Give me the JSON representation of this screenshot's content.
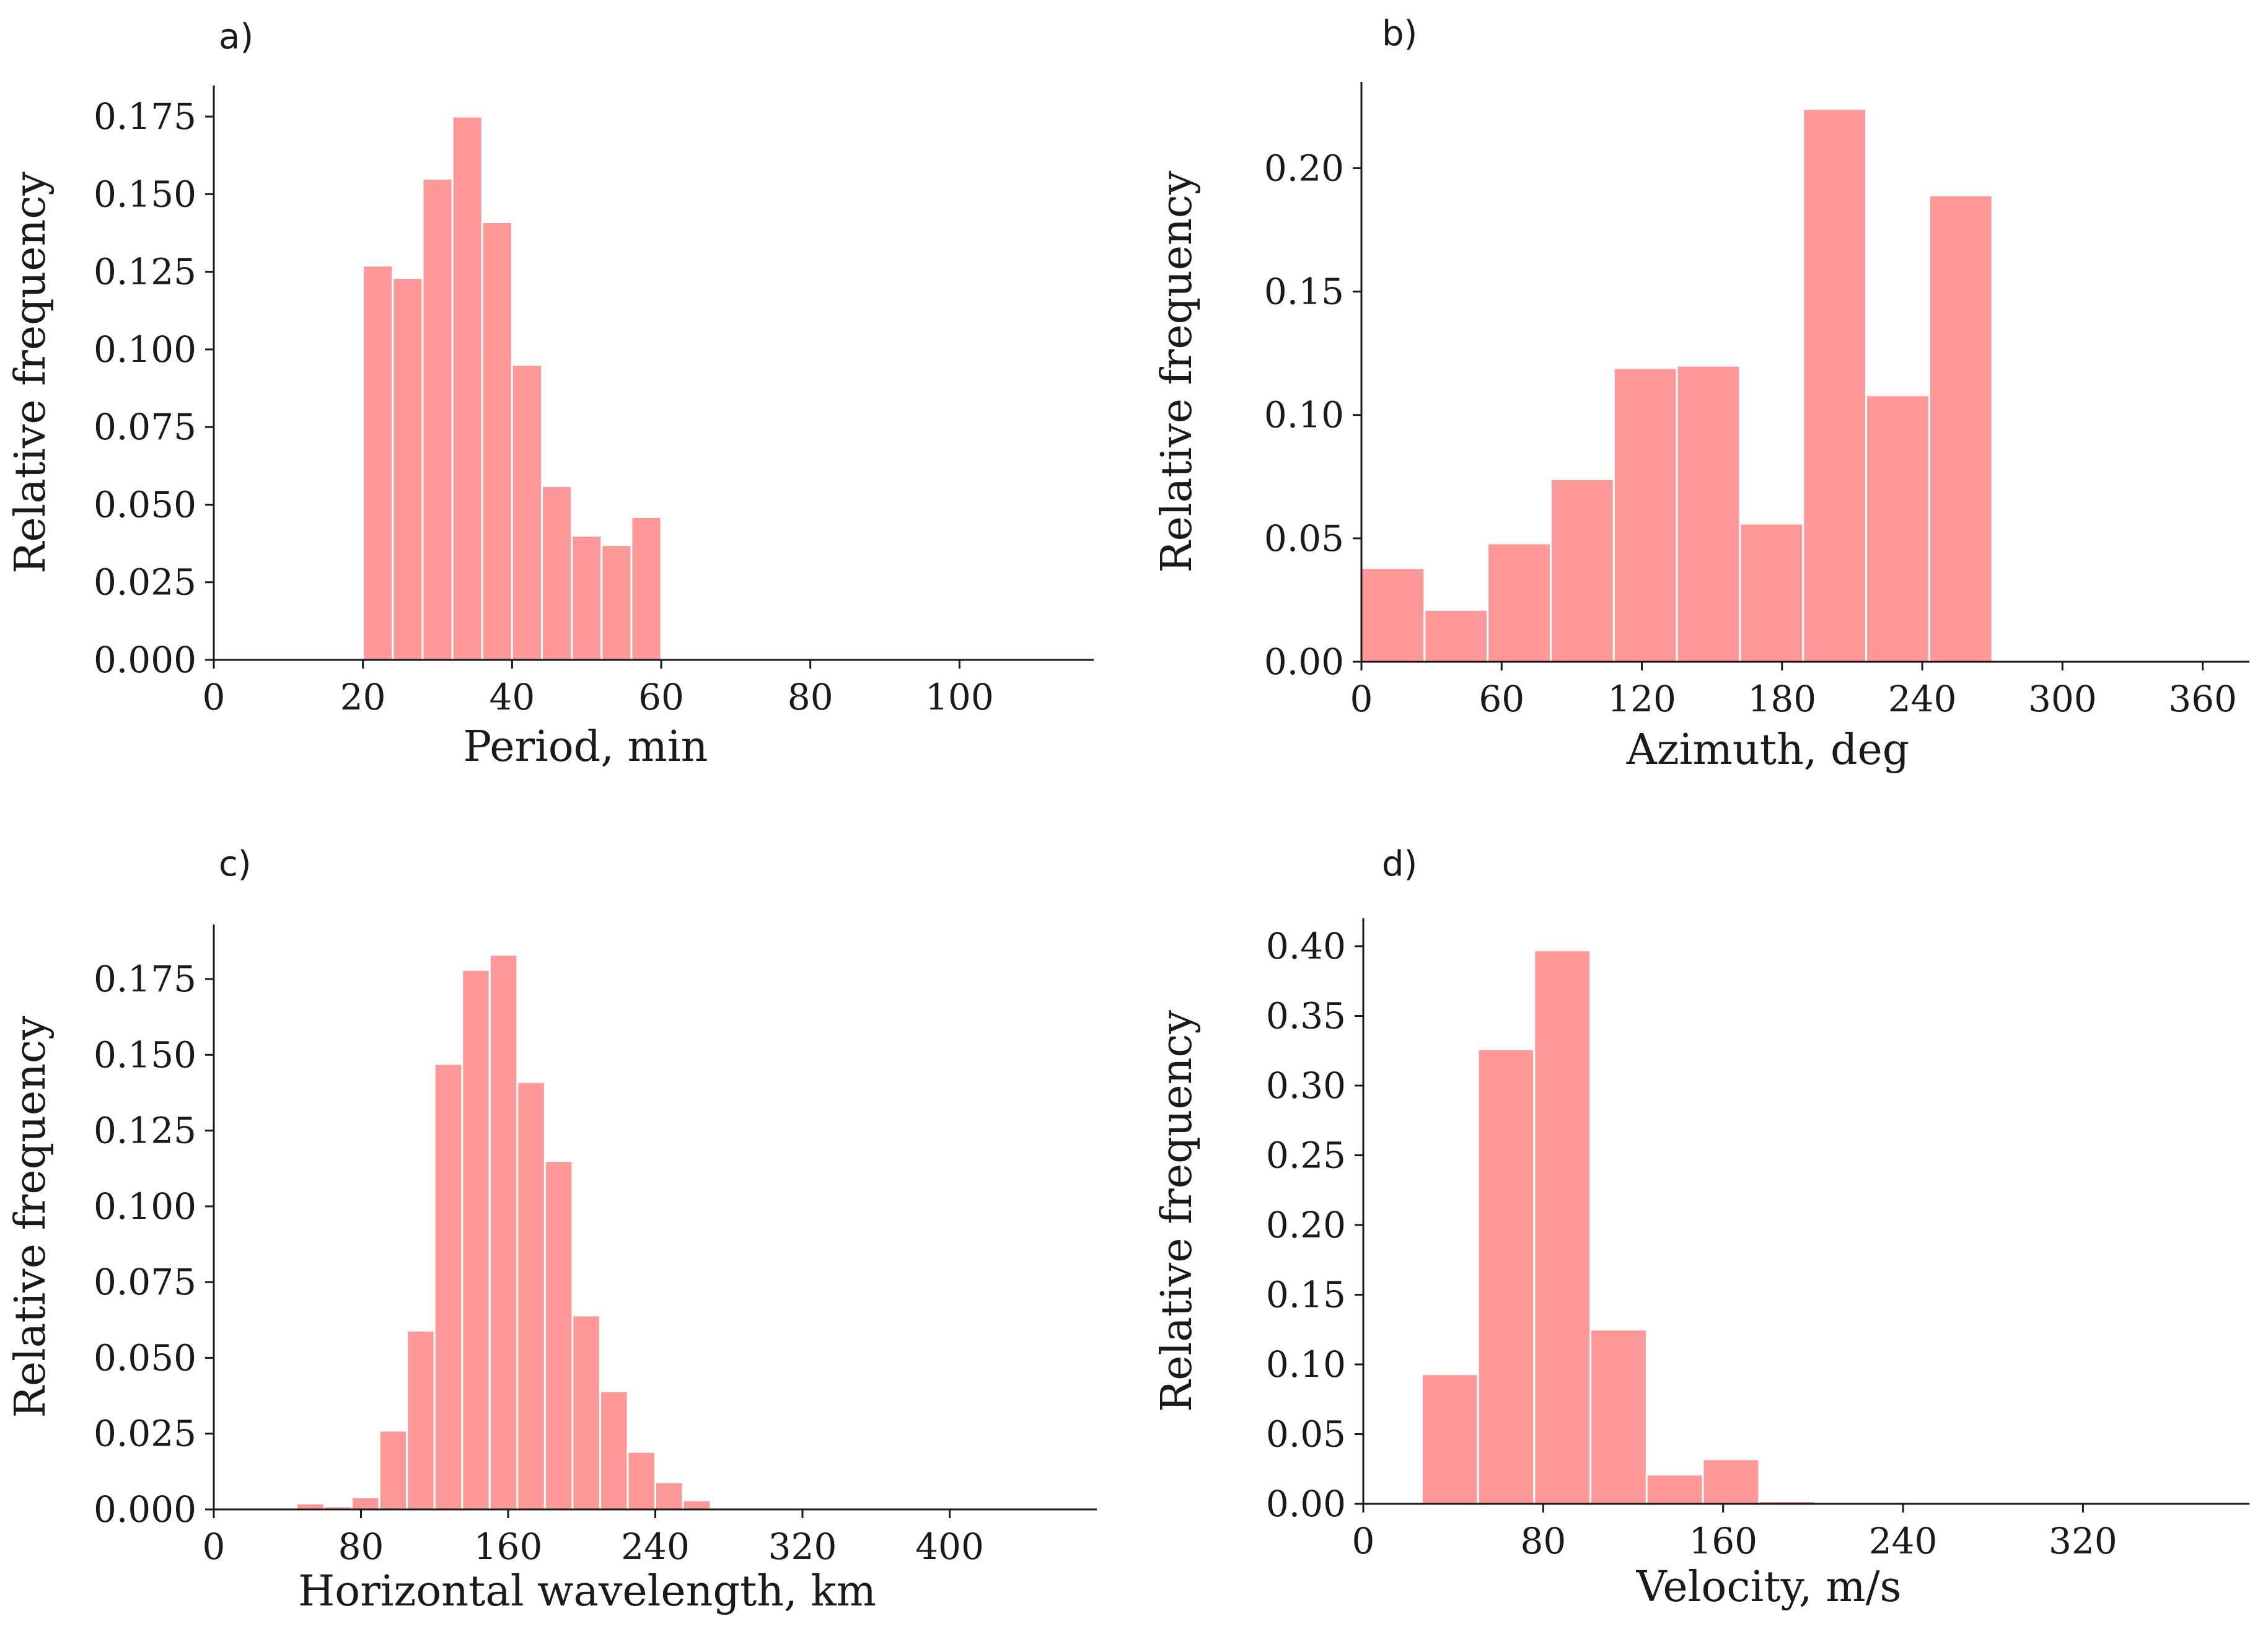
{
  "colors": {
    "bar_fill": "#ff9999",
    "bar_edge": "#ffffff",
    "axis": "#1a1a1a"
  },
  "chart_data": [
    {
      "type": "bar",
      "panel_label": "a)",
      "title": "",
      "xlabel": "Period, min",
      "ylabel": "Relative frequency",
      "xlim": [
        0,
        118
      ],
      "ylim": [
        0,
        0.185
      ],
      "xticks": [
        0,
        20,
        40,
        60,
        80,
        100
      ],
      "yticks": [
        0.0,
        0.025,
        0.05,
        0.075,
        0.1,
        0.125,
        0.15,
        0.175
      ],
      "ytick_labels": [
        "0.000",
        "0.025",
        "0.050",
        "0.075",
        "0.100",
        "0.125",
        "0.150",
        "0.175"
      ],
      "bin_edges": [
        20,
        24,
        28,
        32,
        36,
        40,
        44,
        48,
        52,
        56,
        60
      ],
      "values": [
        0.127,
        0.123,
        0.155,
        0.175,
        0.141,
        0.095,
        0.056,
        0.04,
        0.037,
        0.046
      ],
      "grid": false
    },
    {
      "type": "bar",
      "panel_label": "b)",
      "title": "",
      "xlabel": "Azimuth, deg",
      "ylabel": "Relative frequency",
      "xlim": [
        0,
        380
      ],
      "ylim": [
        0,
        0.235
      ],
      "xticks": [
        0,
        60,
        120,
        180,
        240,
        300,
        360
      ],
      "yticks": [
        0.0,
        0.05,
        0.1,
        0.15,
        0.2
      ],
      "ytick_labels": [
        "0.00",
        "0.05",
        "0.10",
        "0.15",
        "0.20"
      ],
      "bin_edges": [
        0,
        27,
        54,
        81,
        108,
        135,
        162,
        189,
        216,
        243,
        270
      ],
      "values": [
        0.038,
        0.021,
        0.048,
        0.074,
        0.119,
        0.12,
        0.056,
        0.224,
        0.108,
        0.189
      ],
      "grid": false
    },
    {
      "type": "bar",
      "panel_label": "c)",
      "title": "",
      "xlabel": "Horizontal wavelength, km",
      "ylabel": "Relative frequency",
      "xlim": [
        0,
        480
      ],
      "ylim": [
        0,
        0.193
      ],
      "xticks": [
        0,
        80,
        160,
        240,
        320,
        400
      ],
      "yticks": [
        0.0,
        0.025,
        0.05,
        0.075,
        0.1,
        0.125,
        0.15,
        0.175
      ],
      "ytick_labels": [
        "0.000",
        "0.025",
        "0.050",
        "0.075",
        "0.100",
        "0.125",
        "0.150",
        "0.175"
      ],
      "bin_edges": [
        45,
        60,
        75,
        90,
        105,
        120,
        135,
        150,
        165,
        180,
        195,
        210,
        225,
        240,
        255,
        270,
        285,
        300,
        315,
        330,
        345,
        360
      ],
      "values": [
        0.002,
        0.001,
        0.004,
        0.026,
        0.059,
        0.147,
        0.178,
        0.183,
        0.141,
        0.115,
        0.064,
        0.039,
        0.019,
        0.009,
        0.003,
        0.0005,
        0.0005,
        0.0003,
        0.0003,
        0.0003,
        0.0003
      ],
      "grid": false
    },
    {
      "type": "bar",
      "panel_label": "d)",
      "title": "",
      "xlabel": "Velocity, m/s",
      "ylabel": "Relative frequency",
      "xlim": [
        0,
        394
      ],
      "ylim": [
        0,
        0.42
      ],
      "xticks": [
        0,
        80,
        160,
        240,
        320
      ],
      "yticks": [
        0.0,
        0.05,
        0.1,
        0.15,
        0.2,
        0.25,
        0.3,
        0.35,
        0.4
      ],
      "ytick_labels": [
        "0.00",
        "0.05",
        "0.10",
        "0.15",
        "0.20",
        "0.25",
        "0.30",
        "0.35",
        "0.40"
      ],
      "bin_edges": [
        26,
        51,
        76,
        101,
        126,
        151,
        176,
        201,
        226,
        251,
        276,
        301,
        326
      ],
      "values": [
        0.093,
        0.326,
        0.397,
        0.125,
        0.021,
        0.032,
        0.002,
        0.0005,
        0.0005,
        0.0003,
        0.0003,
        0.0003
      ],
      "grid": false
    }
  ]
}
